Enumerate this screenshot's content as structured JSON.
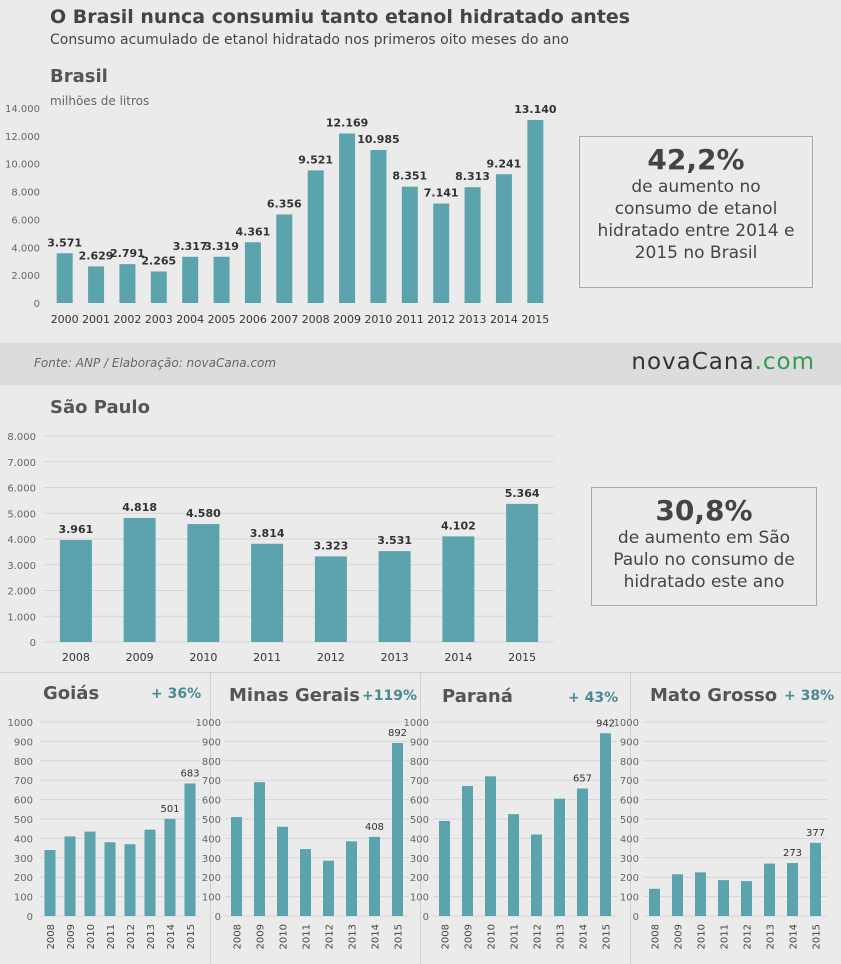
{
  "header": {
    "title": "O Brasil nunca consumiu tanto etanol hidratado antes",
    "subtitle": "Consumo acumulado de etanol hidratado nos primeros oito meses do ano"
  },
  "brasil": {
    "region": "Brasil",
    "unit": "milhões de litros",
    "callout_big": "42,2%",
    "callout_text_1": "de aumento no",
    "callout_text_2": "consumo de etanol",
    "callout_text_3": "hidratado entre 2014 e",
    "callout_text_4": "2015 no Brasil"
  },
  "source": {
    "text": "Fonte: ANP / Elaboração: novaCana.com",
    "logo_main": "novaCana",
    "logo_suffix": ".com"
  },
  "sao_paulo": {
    "region": "São Paulo",
    "callout_big": "30,8%",
    "callout_text_1": "de aumento em São",
    "callout_text_2": "Paulo no consumo de",
    "callout_text_3": "hidratado este ano"
  },
  "states": [
    {
      "region": "Goiás",
      "pct": "+ 36%"
    },
    {
      "region": "Minas Gerais",
      "pct": "+119%"
    },
    {
      "region": "Paraná",
      "pct": "+ 43%"
    },
    {
      "region": "Mato Grosso",
      "pct": "+ 38%"
    }
  ],
  "colors": {
    "bar": "#5ba4ad",
    "pct": "#4a8a93",
    "grid": "#d6d6d6"
  },
  "chart_data": [
    {
      "type": "bar",
      "title": "Brasil",
      "ylabel": "milhões de litros",
      "categories": [
        "2000",
        "2001",
        "2002",
        "2003",
        "2004",
        "2005",
        "2006",
        "2007",
        "2008",
        "2009",
        "2010",
        "2011",
        "2012",
        "2013",
        "2014",
        "2015"
      ],
      "values": [
        3571,
        2629,
        2791,
        2265,
        3317,
        3319,
        4361,
        6356,
        9521,
        12169,
        10985,
        8351,
        7141,
        8313,
        9241,
        13140
      ],
      "value_labels": [
        "3.571",
        "2.629",
        "2.791",
        "2.265",
        "3.317",
        "3.319",
        "4.361",
        "6.356",
        "9.521",
        "12.169",
        "10.985",
        "8.351",
        "7.141",
        "8.313",
        "9.241",
        "13.140"
      ],
      "yticks": [
        0,
        2000,
        4000,
        6000,
        8000,
        10000,
        12000,
        14000
      ],
      "ytick_labels": [
        "0",
        "2.000",
        "4.000",
        "6.000",
        "8.000",
        "10.000",
        "12.000",
        "14.000"
      ],
      "ylim": [
        0,
        14000
      ],
      "grid": false
    },
    {
      "type": "bar",
      "title": "São Paulo",
      "categories": [
        "2008",
        "2009",
        "2010",
        "2011",
        "2012",
        "2013",
        "2014",
        "2015"
      ],
      "values": [
        3961,
        4818,
        4580,
        3814,
        3323,
        3531,
        4102,
        5364
      ],
      "value_labels": [
        "3.961",
        "4.818",
        "4.580",
        "3.814",
        "3.323",
        "3.531",
        "4.102",
        "5.364"
      ],
      "yticks": [
        0,
        1000,
        2000,
        3000,
        4000,
        5000,
        6000,
        7000,
        8000
      ],
      "ytick_labels": [
        "0",
        "1.000",
        "2.000",
        "3.000",
        "4.000",
        "5.000",
        "6.000",
        "7.000",
        "8.000"
      ],
      "ylim": [
        0,
        8000
      ],
      "grid": true
    },
    {
      "type": "bar",
      "title": "Goiás",
      "categories": [
        "2008",
        "2009",
        "2010",
        "2011",
        "2012",
        "2013",
        "2014",
        "2015"
      ],
      "values": [
        340,
        410,
        435,
        380,
        370,
        445,
        501,
        683
      ],
      "value_labels": [
        "",
        "",
        "",
        "",
        "",
        "",
        "501",
        "683"
      ],
      "yticks": [
        0,
        100,
        200,
        300,
        400,
        500,
        600,
        700,
        800,
        900,
        1000
      ],
      "ytick_labels": [
        "0",
        "100",
        "200",
        "300",
        "400",
        "500",
        "600",
        "700",
        "800",
        "900",
        "1000"
      ],
      "ylim": [
        0,
        1000
      ],
      "grid": true
    },
    {
      "type": "bar",
      "title": "Minas Gerais",
      "categories": [
        "2008",
        "2009",
        "2010",
        "2011",
        "2012",
        "2013",
        "2014",
        "2015"
      ],
      "values": [
        510,
        690,
        460,
        345,
        285,
        385,
        408,
        892
      ],
      "value_labels": [
        "",
        "",
        "",
        "",
        "",
        "",
        "408",
        "892"
      ],
      "yticks": [
        0,
        100,
        200,
        300,
        400,
        500,
        600,
        700,
        800,
        900,
        1000
      ],
      "ylim": [
        0,
        1000
      ],
      "grid": true
    },
    {
      "type": "bar",
      "title": "Paraná",
      "categories": [
        "2008",
        "2009",
        "2010",
        "2011",
        "2012",
        "2013",
        "2014",
        "2015"
      ],
      "values": [
        490,
        670,
        720,
        525,
        420,
        605,
        657,
        942
      ],
      "value_labels": [
        "",
        "",
        "",
        "",
        "",
        "",
        "657",
        "942"
      ],
      "yticks": [
        0,
        100,
        200,
        300,
        400,
        500,
        600,
        700,
        800,
        900,
        1000
      ],
      "ylim": [
        0,
        1000
      ],
      "grid": true
    },
    {
      "type": "bar",
      "title": "Mato Grosso",
      "categories": [
        "2008",
        "2009",
        "2010",
        "2011",
        "2012",
        "2013",
        "2014",
        "2015"
      ],
      "values": [
        140,
        215,
        225,
        185,
        180,
        270,
        273,
        377
      ],
      "value_labels": [
        "",
        "",
        "",
        "",
        "",
        "",
        "273",
        "377"
      ],
      "yticks": [
        0,
        100,
        200,
        300,
        400,
        500,
        600,
        700,
        800,
        900,
        1000
      ],
      "ylim": [
        0,
        1000
      ],
      "grid": true
    }
  ]
}
